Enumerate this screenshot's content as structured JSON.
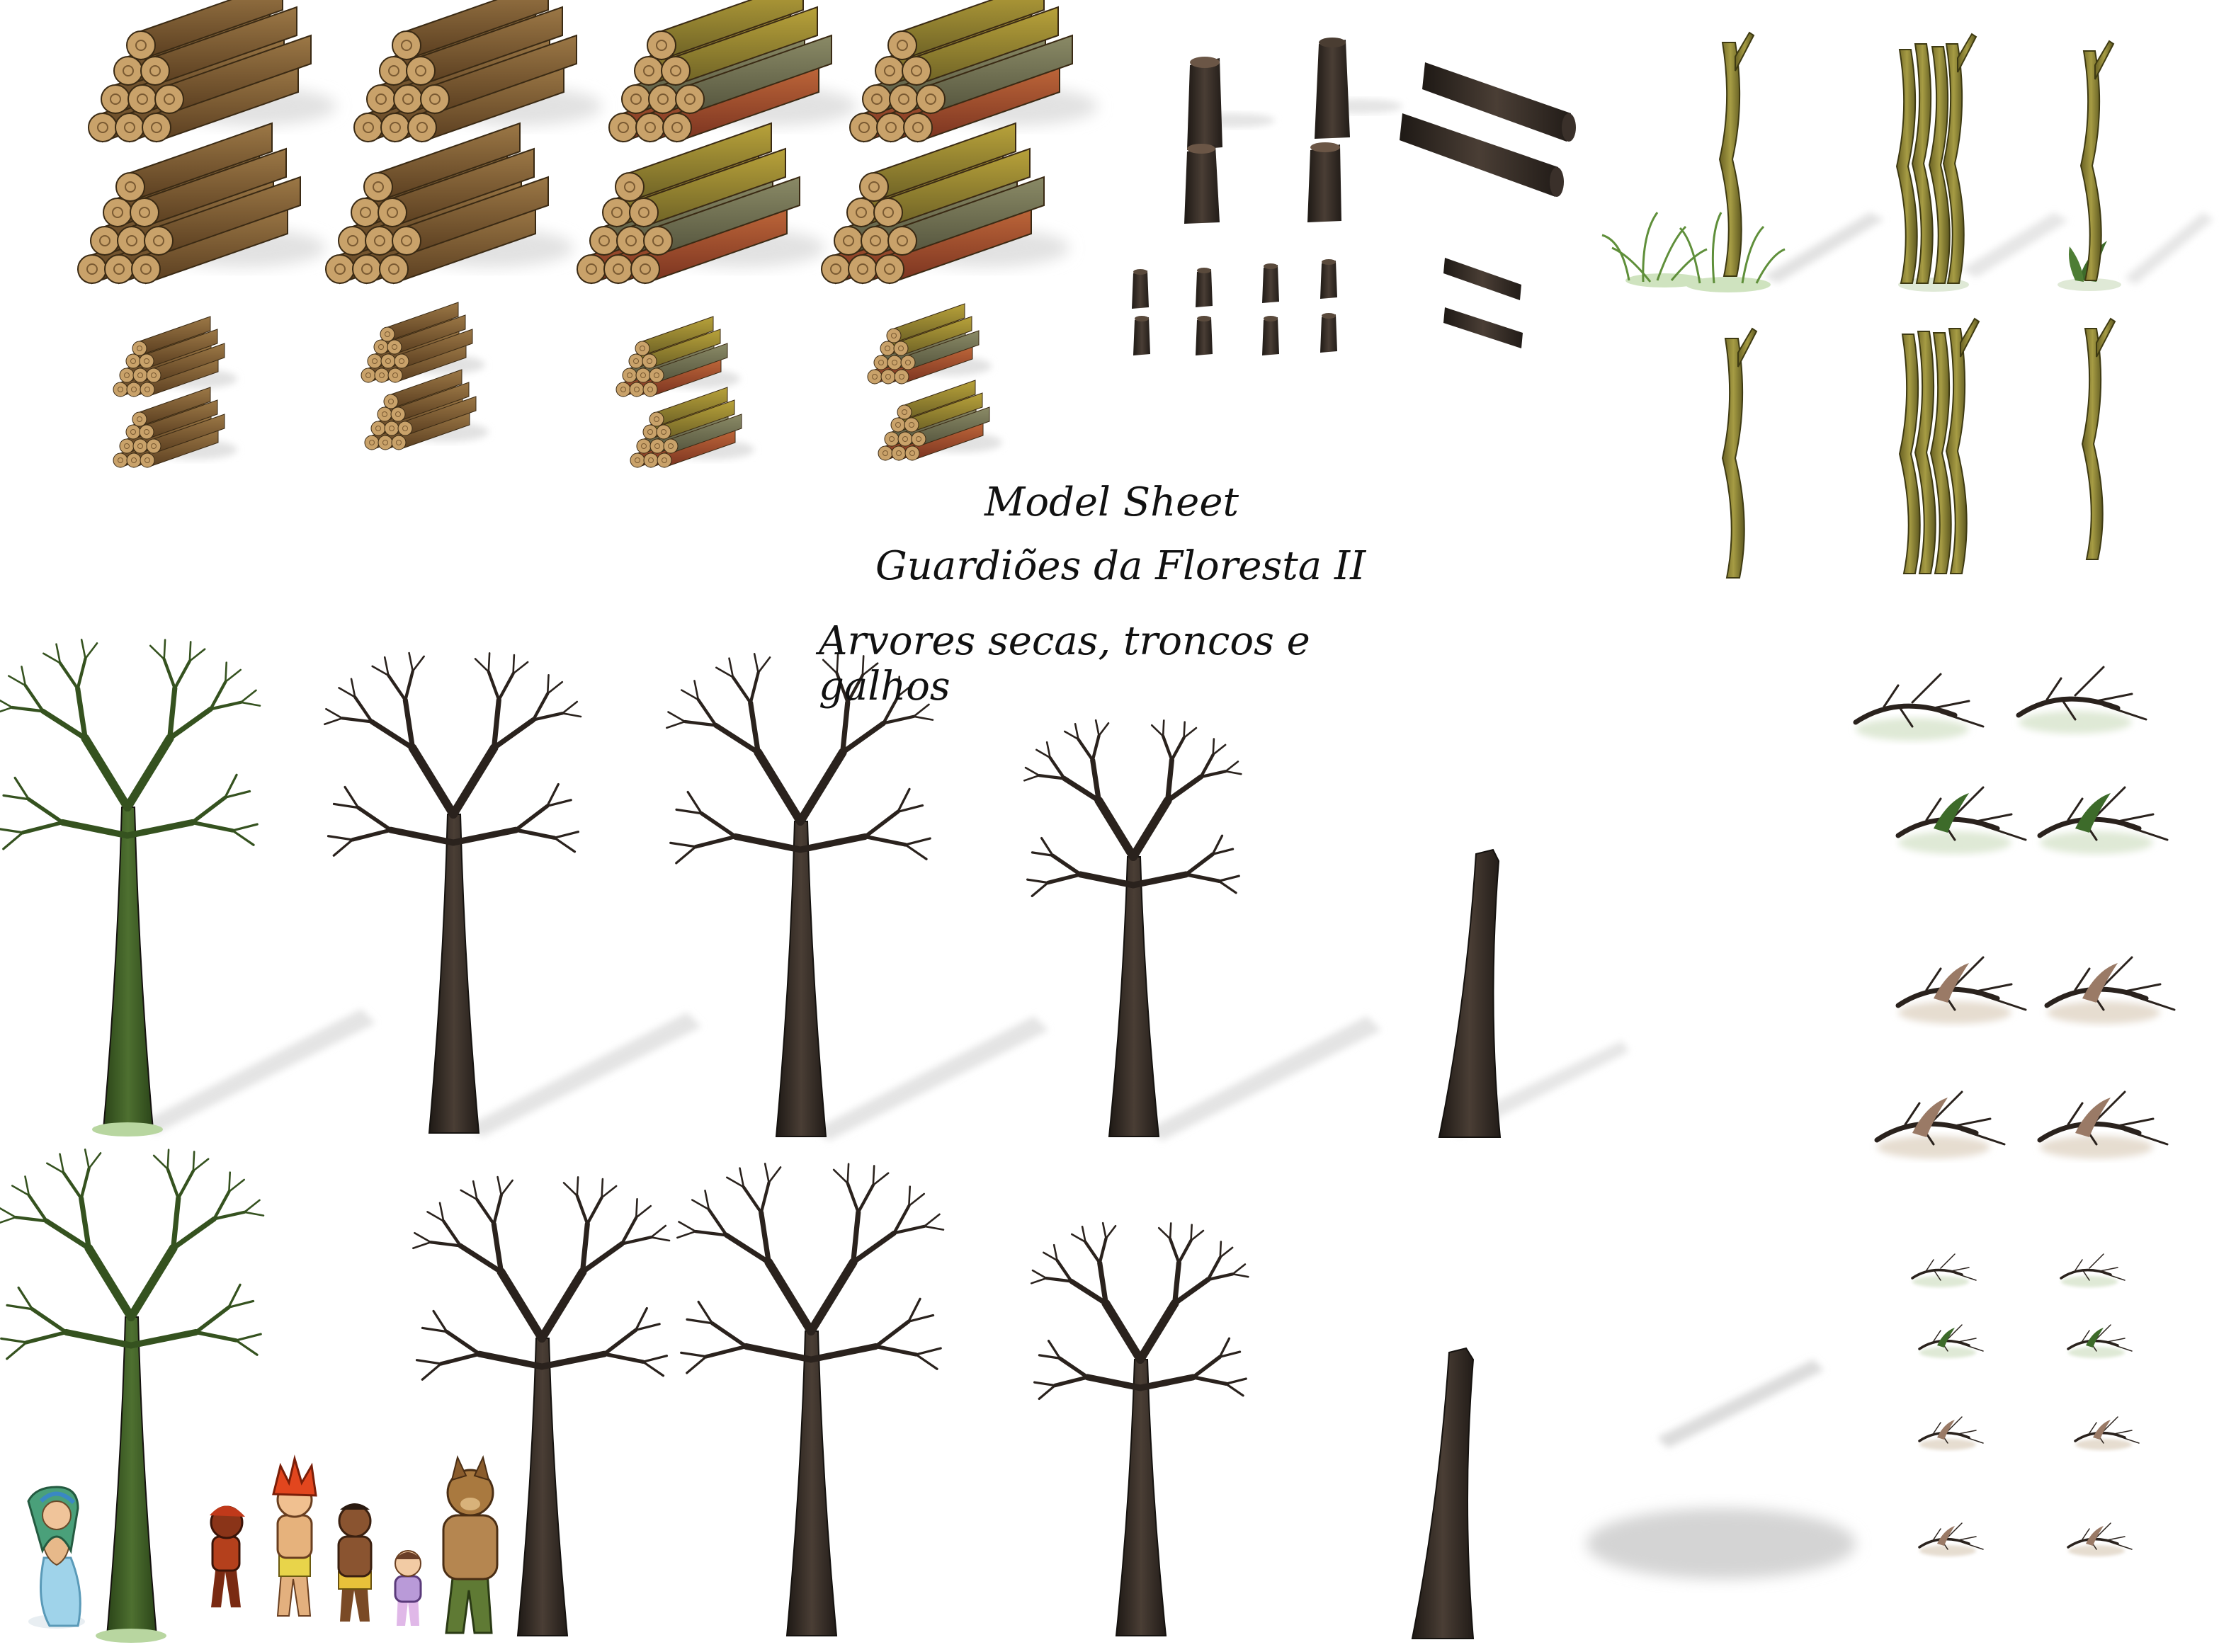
{
  "sheet": {
    "title_line1": "Model  Sheet",
    "title_line2": "Guardiões da Floresta II",
    "title_line3": "Arvores secas, troncos e galhos"
  },
  "colors": {
    "background": "#ffffff",
    "wood_brown": "#7a5a32",
    "wood_olive": "#8a7a2e",
    "wood_red": "#9a4a2a",
    "dead_bark": "#2e2722",
    "mossy_trunk": "#3c5a26",
    "olive_stick": "#8a8030",
    "grass": "#5f8f3a",
    "fern": "#3d6b2a",
    "shadow": "#dcdcdc"
  },
  "sprite_groups": [
    "log-piles",
    "stumps-and-fallen-logs",
    "upright-sticks",
    "dead-trees",
    "fallen-branches",
    "characters"
  ]
}
